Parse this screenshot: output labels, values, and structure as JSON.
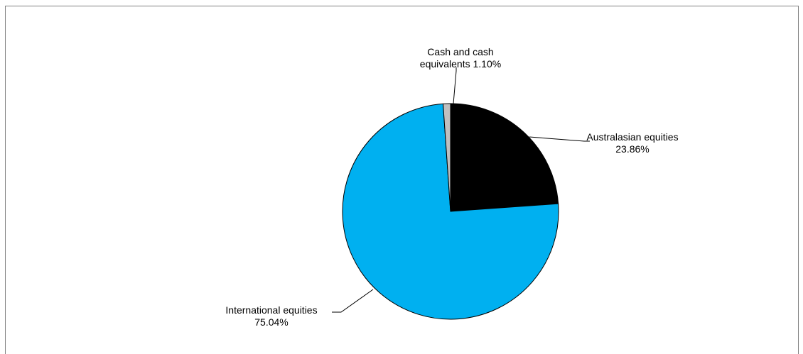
{
  "chart_data": {
    "type": "pie",
    "title": "",
    "slices": [
      {
        "label": "Australasian equities",
        "value": 23.86,
        "label_lines": [
          "Australasian equities",
          "23.86%"
        ],
        "color": "#000000"
      },
      {
        "label": "International equities",
        "value": 75.04,
        "label_lines": [
          "International equities",
          "75.04%"
        ],
        "color": "#00B0F0"
      },
      {
        "label": "Cash and cash equivalents",
        "value": 1.1,
        "label_lines": [
          "Cash and cash",
          "equivalents 1.10%"
        ],
        "color": "#BFBFBF"
      }
    ],
    "start_angle": "12 o'clock",
    "direction": "clockwise",
    "legend": "none",
    "slice_border_color": "#000000"
  }
}
